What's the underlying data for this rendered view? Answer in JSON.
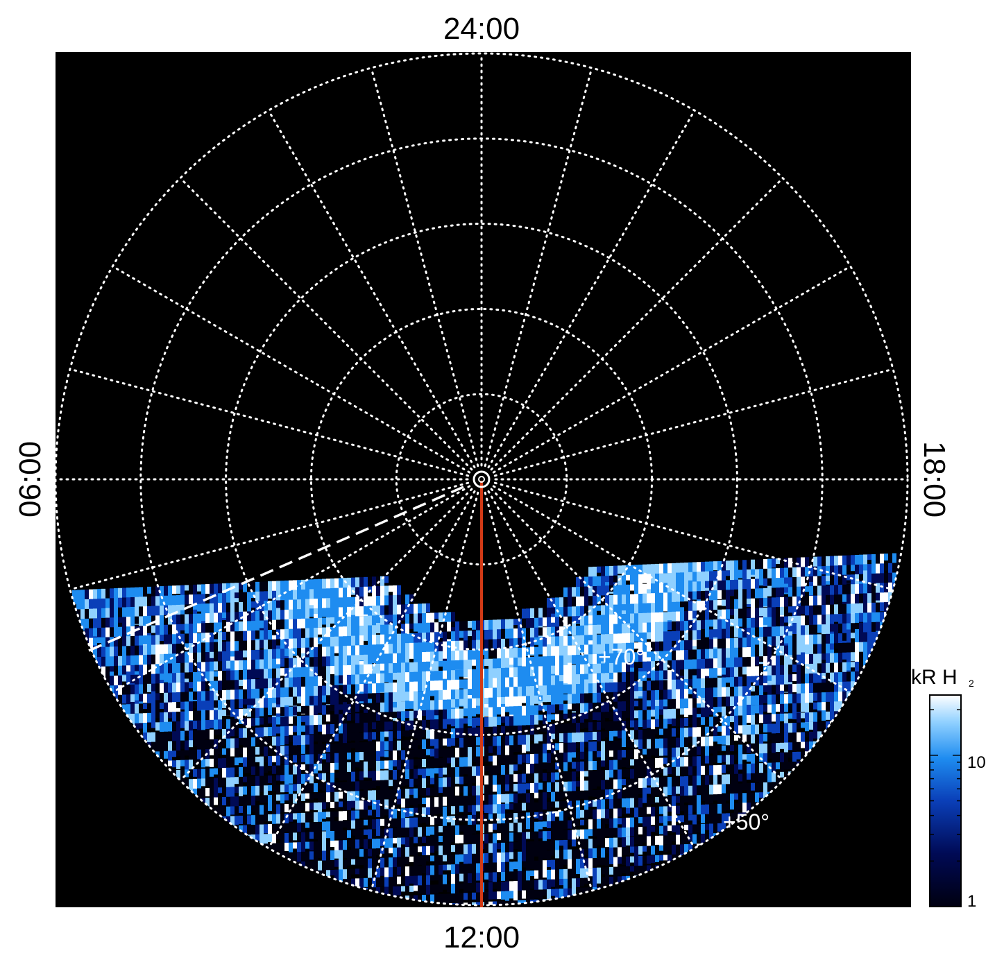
{
  "projection": {
    "type": "polar",
    "local_time_labels": {
      "top": "24:00",
      "bottom": "12:00",
      "left": "06:00",
      "right": "18:00"
    },
    "latitude_labels": [
      "+70°",
      "+50°"
    ],
    "latitude_circles_deg": [
      80,
      70,
      60,
      50,
      40
    ],
    "meridian_step_hours": 1,
    "grid_style": "dotted white"
  },
  "colorbar": {
    "title": "kR H",
    "title_subscript": "2",
    "tick_labels": [
      "10",
      "1"
    ],
    "scale": "log",
    "range": [
      1,
      25
    ],
    "colors": [
      "#000010",
      "#000a55",
      "#0a3fb8",
      "#1e8cf0",
      "#8fd0ff",
      "#ffffff"
    ]
  },
  "colors": {
    "background": "#000000",
    "grid": "#ffffff",
    "noon_line": "#d23a16",
    "dashed_line": "#ffffff"
  }
}
